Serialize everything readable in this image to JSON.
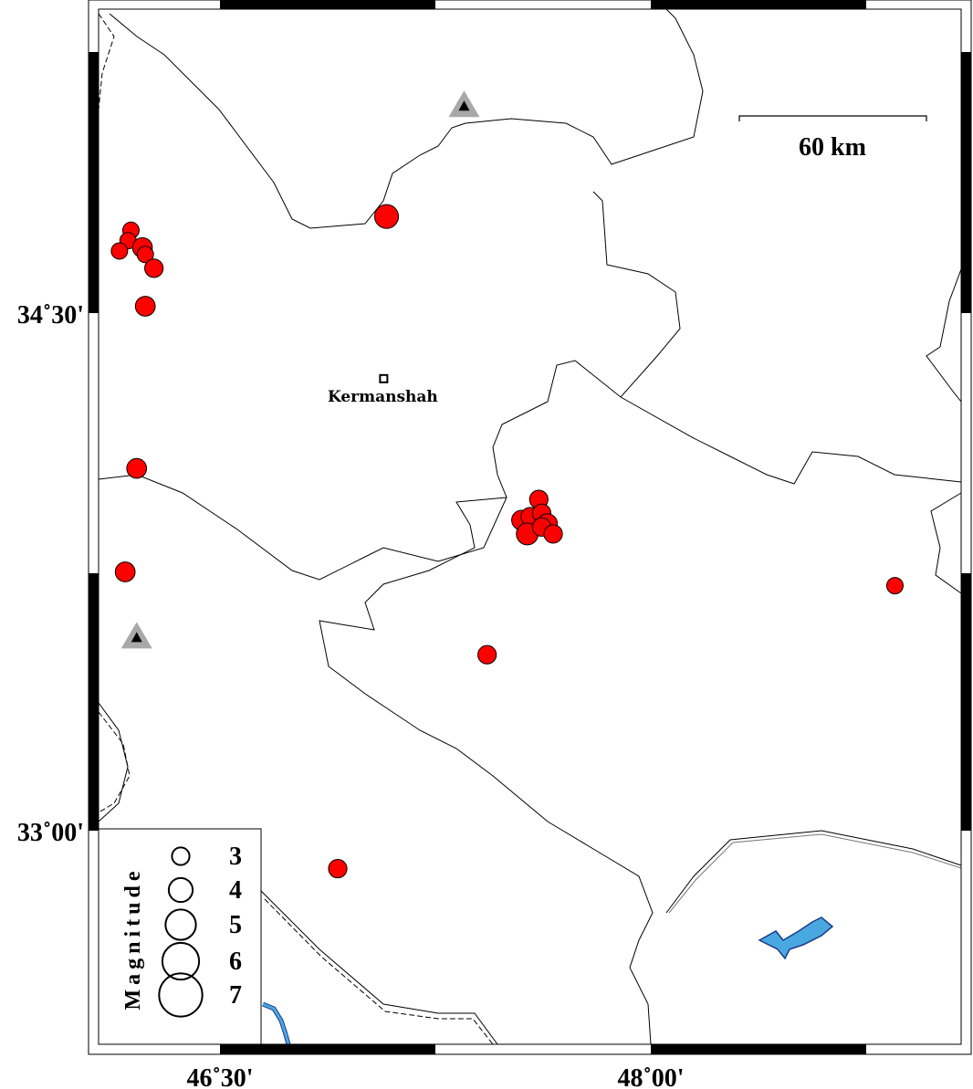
{
  "map": {
    "lon_range": [
      46.05,
      49.05
    ],
    "lat_range": [
      32.45,
      35.4
    ],
    "lon_ticks": [
      {
        "value": 46.5,
        "label": "46˚30'"
      },
      {
        "value": 48.0,
        "label": "48˚00'"
      }
    ],
    "lat_ticks": [
      {
        "value": 34.5,
        "label": "34˚30'"
      },
      {
        "value": 33.0,
        "label": "33˚00'"
      }
    ],
    "scale_bar": {
      "label": "60 km"
    },
    "city": {
      "name": "Kermanshah",
      "lon": 47.07,
      "lat": 34.31
    },
    "stations": [
      {
        "lon": 47.35,
        "lat": 35.1,
        "symbol": "triangle"
      },
      {
        "lon": 46.21,
        "lat": 33.56,
        "symbol": "triangle"
      }
    ],
    "colors": {
      "event": "#ff0000",
      "water": "#4aa8e0",
      "station_outer": "#a8a8a8",
      "station_inner": "#000000"
    },
    "events": [
      {
        "lon": 47.08,
        "lat": 34.78,
        "mag": 3.8
      },
      {
        "lon": 46.19,
        "lat": 34.74,
        "mag": 2.7
      },
      {
        "lon": 46.18,
        "lat": 34.71,
        "mag": 2.7
      },
      {
        "lon": 46.15,
        "lat": 34.68,
        "mag": 2.7
      },
      {
        "lon": 46.23,
        "lat": 34.69,
        "mag": 3.2
      },
      {
        "lon": 46.24,
        "lat": 34.67,
        "mag": 2.7
      },
      {
        "lon": 46.27,
        "lat": 34.63,
        "mag": 3.0
      },
      {
        "lon": 46.24,
        "lat": 34.52,
        "mag": 3.2
      },
      {
        "lon": 46.21,
        "lat": 34.05,
        "mag": 3.2
      },
      {
        "lon": 46.17,
        "lat": 33.75,
        "mag": 3.2
      },
      {
        "lon": 46.91,
        "lat": 32.89,
        "mag": 3.0
      },
      {
        "lon": 47.43,
        "lat": 33.51,
        "mag": 3.0
      },
      {
        "lon": 48.85,
        "lat": 33.71,
        "mag": 2.7
      },
      {
        "lon": 47.61,
        "lat": 33.96,
        "mag": 3.0
      },
      {
        "lon": 47.55,
        "lat": 33.9,
        "mag": 3.2
      },
      {
        "lon": 47.58,
        "lat": 33.91,
        "mag": 3.0
      },
      {
        "lon": 47.62,
        "lat": 33.92,
        "mag": 3.0
      },
      {
        "lon": 47.64,
        "lat": 33.89,
        "mag": 3.2
      },
      {
        "lon": 47.57,
        "lat": 33.86,
        "mag": 3.5
      },
      {
        "lon": 47.62,
        "lat": 33.88,
        "mag": 3.0
      },
      {
        "lon": 47.66,
        "lat": 33.86,
        "mag": 3.0
      }
    ]
  },
  "legend": {
    "title": "Magnitude",
    "items": [
      {
        "mag": 3,
        "label": "3"
      },
      {
        "mag": 4,
        "label": "4"
      },
      {
        "mag": 5,
        "label": "5"
      },
      {
        "mag": 6,
        "label": "6"
      },
      {
        "mag": 7,
        "label": "7"
      }
    ]
  }
}
